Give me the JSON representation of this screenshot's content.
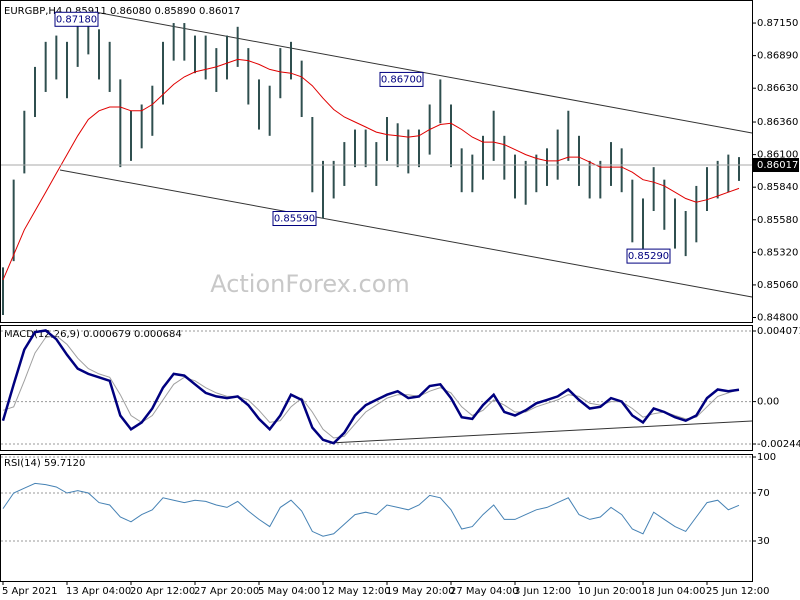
{
  "chart_data": [
    {
      "type": "ohlc",
      "title": "EURGBP,H4  0.85911 0.86080 0.85890 0.86017",
      "watermark": "ActionForex.com",
      "categories": [
        "5 Apr 2021",
        null,
        null,
        null,
        null,
        null,
        "13 Apr 04:00",
        null,
        null,
        null,
        null,
        null,
        "20 Apr 12:00",
        null,
        null,
        null,
        null,
        null,
        "27 Apr 20:00",
        null,
        null,
        null,
        null,
        null,
        "5 May 04:00",
        null,
        null,
        null,
        null,
        null,
        "12 May 12:00",
        null,
        null,
        null,
        null,
        null,
        "19 May 20:00",
        null,
        null,
        null,
        null,
        null,
        "27 May 04:00",
        null,
        null,
        null,
        null,
        null,
        "3 Jun 12:00",
        null,
        null,
        null,
        null,
        null,
        "10 Jun 20:00",
        null,
        null,
        null,
        null,
        null,
        "18 Jun 04:00",
        null,
        null,
        null,
        null,
        null,
        "25 Jun 12:00",
        null,
        null,
        null
      ],
      "high": [
        0.852,
        0.859,
        0.8645,
        0.868,
        0.87,
        0.8705,
        0.87,
        0.8715,
        0.8718,
        0.871,
        0.87,
        0.867,
        0.8645,
        0.865,
        0.8665,
        0.87,
        0.8715,
        0.8715,
        0.8705,
        0.8705,
        0.8695,
        0.8705,
        0.8712,
        0.8695,
        0.867,
        0.8665,
        0.8695,
        0.87,
        0.8685,
        0.864,
        0.8605,
        0.8605,
        0.862,
        0.863,
        0.863,
        0.862,
        0.864,
        0.8635,
        0.863,
        0.863,
        0.865,
        0.867,
        0.865,
        0.8615,
        0.861,
        0.8625,
        0.8645,
        0.8625,
        0.861,
        0.8605,
        0.861,
        0.8615,
        0.863,
        0.8645,
        0.8625,
        0.8605,
        0.8605,
        0.862,
        0.8615,
        0.859,
        0.8575,
        0.86,
        0.859,
        0.8575,
        0.8565,
        0.8585,
        0.86,
        0.8605,
        0.861,
        0.8608
      ],
      "low": [
        0.8482,
        0.8525,
        0.8595,
        0.864,
        0.866,
        0.867,
        0.8655,
        0.868,
        0.869,
        0.867,
        0.866,
        0.86,
        0.8605,
        0.8615,
        0.8625,
        0.865,
        0.8685,
        0.8685,
        0.8675,
        0.867,
        0.866,
        0.867,
        0.868,
        0.865,
        0.863,
        0.8625,
        0.8655,
        0.867,
        0.864,
        0.858,
        0.8559,
        0.8575,
        0.8585,
        0.86,
        0.86,
        0.8585,
        0.8605,
        0.86,
        0.8595,
        0.86,
        0.861,
        0.8635,
        0.86,
        0.858,
        0.858,
        0.859,
        0.8605,
        0.859,
        0.8575,
        0.857,
        0.858,
        0.8585,
        0.859,
        0.8605,
        0.8585,
        0.8575,
        0.8575,
        0.8585,
        0.858,
        0.854,
        0.8535,
        0.8565,
        0.855,
        0.8535,
        0.8529,
        0.854,
        0.8565,
        0.8575,
        0.858,
        0.8589
      ],
      "bar_color": "#2f4f4f",
      "ma": [
        0.851,
        0.853,
        0.855,
        0.8565,
        0.858,
        0.8595,
        0.861,
        0.8625,
        0.8638,
        0.8645,
        0.8648,
        0.8648,
        0.8645,
        0.8645,
        0.865,
        0.8658,
        0.8666,
        0.8672,
        0.8676,
        0.8678,
        0.868,
        0.8683,
        0.8686,
        0.8685,
        0.8682,
        0.8678,
        0.8676,
        0.8675,
        0.8672,
        0.8665,
        0.8655,
        0.8646,
        0.864,
        0.8636,
        0.8632,
        0.8628,
        0.8626,
        0.8625,
        0.8624,
        0.8625,
        0.863,
        0.8634,
        0.8635,
        0.863,
        0.8624,
        0.862,
        0.862,
        0.8618,
        0.8614,
        0.861,
        0.8607,
        0.8605,
        0.8605,
        0.8608,
        0.8608,
        0.8604,
        0.86,
        0.86,
        0.86,
        0.8596,
        0.859,
        0.8588,
        0.8585,
        0.858,
        0.8575,
        0.8572,
        0.8574,
        0.8577,
        0.858,
        0.8583
      ],
      "ma_color": "#e00000",
      "ylim": [
        0.8478,
        0.8731
      ],
      "yticks": [
        {
          "value": 0.8715,
          "label": "0.87150"
        },
        {
          "value": 0.8689,
          "label": "0.86890"
        },
        {
          "value": 0.8663,
          "label": "0.86630"
        },
        {
          "value": 0.8636,
          "label": "0.86360"
        },
        {
          "value": 0.861,
          "label": "0.86100"
        },
        {
          "value": 0.8584,
          "label": "0.85840"
        },
        {
          "value": 0.8558,
          "label": "0.85580"
        },
        {
          "value": 0.8532,
          "label": "0.85320"
        },
        {
          "value": 0.8506,
          "label": "0.85060"
        },
        {
          "value": 0.848,
          "label": "0.84800"
        }
      ],
      "current_price": {
        "value": 0.86017,
        "label": "0.86017"
      },
      "annotations": [
        {
          "value": 0.8718,
          "label": "0.87180"
        },
        {
          "value": 0.867,
          "label": "0.86700"
        },
        {
          "value": 0.8559,
          "label": "0.85590"
        },
        {
          "value": 0.8529,
          "label": "0.85290"
        }
      ]
    },
    {
      "type": "macd",
      "title": "MACD(12,26,9) 0.000679 0.000684",
      "macd": [
        -0.0011,
        0.001,
        0.003,
        0.004,
        0.0041,
        0.0036,
        0.0027,
        0.0019,
        0.0016,
        0.0014,
        0.0012,
        -0.0008,
        -0.0016,
        -0.0012,
        -0.0004,
        0.0008,
        0.0016,
        0.0015,
        0.001,
        0.0005,
        0.0003,
        0.0002,
        0.0003,
        -0.0002,
        -0.001,
        -0.0016,
        -0.0008,
        0.0004,
        0.0001,
        -0.0015,
        -0.0022,
        -0.0024,
        -0.0018,
        -0.0008,
        -0.0002,
        0.0001,
        0.0004,
        0.0006,
        0.0002,
        0.0003,
        0.0009,
        0.001,
        0.0002,
        -0.0009,
        -0.001,
        -0.0002,
        0.0004,
        -0.0006,
        -0.0008,
        -0.0005,
        -0.0001,
        0.0001,
        0.0003,
        0.0007,
        0.0001,
        -0.0004,
        -0.0003,
        0.0002,
        0.0,
        -0.0008,
        -0.0012,
        -0.0004,
        -0.0006,
        -0.0009,
        -0.0011,
        -0.0008,
        0.0002,
        0.0007,
        0.0006,
        0.000679
      ],
      "macd_color": "#00007f",
      "signal": [
        -0.0005,
        -0.0003,
        0.0012,
        0.0028,
        0.0037,
        0.0038,
        0.0033,
        0.0025,
        0.0019,
        0.0016,
        0.0014,
        0.0004,
        -0.0008,
        -0.0012,
        -0.0008,
        0.0001,
        0.001,
        0.0014,
        0.0012,
        0.0008,
        0.0005,
        0.0003,
        0.0003,
        0.0001,
        -0.0005,
        -0.0012,
        -0.0011,
        -0.0003,
        0.0002,
        -0.0006,
        -0.0016,
        -0.0021,
        -0.002,
        -0.0013,
        -0.0006,
        -0.0002,
        0.0002,
        0.0004,
        0.0004,
        0.0003,
        0.0006,
        0.0008,
        0.0005,
        -0.0003,
        -0.0008,
        -0.0005,
        0.0001,
        -0.0002,
        -0.0006,
        -0.0006,
        -0.0003,
        -0.0001,
        0.0001,
        0.0004,
        0.0003,
        -0.0001,
        -0.0002,
        0.0,
        0.0,
        -0.0004,
        -0.0009,
        -0.0007,
        -0.0006,
        -0.0008,
        -0.001,
        -0.0009,
        -0.0003,
        0.0003,
        0.0005,
        0.000684
      ],
      "signal_color": "#a0a0a0",
      "ylim": [
        -0.002445,
        0.004071
      ],
      "yticks": [
        -0.002445,
        {
          "value": 0,
          "label": "0.00"
        },
        0.004071
      ]
    },
    {
      "type": "rsi",
      "title": "RSI(14) 59.7120",
      "values": [
        57,
        70,
        74,
        78,
        77,
        75,
        70,
        72,
        70,
        62,
        60,
        50,
        46,
        52,
        56,
        66,
        64,
        62,
        64,
        63,
        60,
        58,
        63,
        55,
        48,
        42,
        58,
        64,
        55,
        38,
        34,
        36,
        44,
        52,
        54,
        52,
        60,
        58,
        56,
        60,
        68,
        66,
        56,
        40,
        42,
        52,
        60,
        48,
        48,
        52,
        56,
        58,
        62,
        66,
        52,
        48,
        50,
        58,
        52,
        40,
        36,
        54,
        48,
        42,
        38,
        50,
        62,
        64,
        56,
        59.712
      ],
      "color": "#4682b4",
      "ylim": [
        0,
        100
      ],
      "yticks": [
        100,
        70,
        30
      ]
    }
  ]
}
